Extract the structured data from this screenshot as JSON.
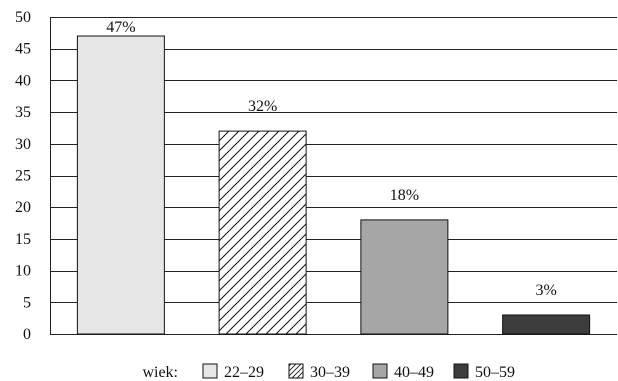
{
  "chart_data": {
    "type": "bar",
    "categories": [
      "22–29",
      "30–39",
      "40–49",
      "50–59"
    ],
    "values": [
      47,
      32,
      18,
      3
    ],
    "data_labels": [
      "47%",
      "32%",
      "18%",
      "3%"
    ],
    "ylim": [
      0,
      50
    ],
    "yticks": [
      "0",
      "5",
      "10",
      "15",
      "20",
      "25",
      "30",
      "35",
      "40",
      "45",
      "50"
    ],
    "grid": true,
    "legend": {
      "title": "wiek:",
      "placement": "bottom"
    },
    "fills": [
      {
        "style": "solid",
        "color": "#e6e6e6"
      },
      {
        "style": "hatch",
        "color": "#ffffff"
      },
      {
        "style": "solid",
        "color": "#a6a6a6"
      },
      {
        "style": "solid",
        "color": "#3d3d3d"
      }
    ]
  }
}
